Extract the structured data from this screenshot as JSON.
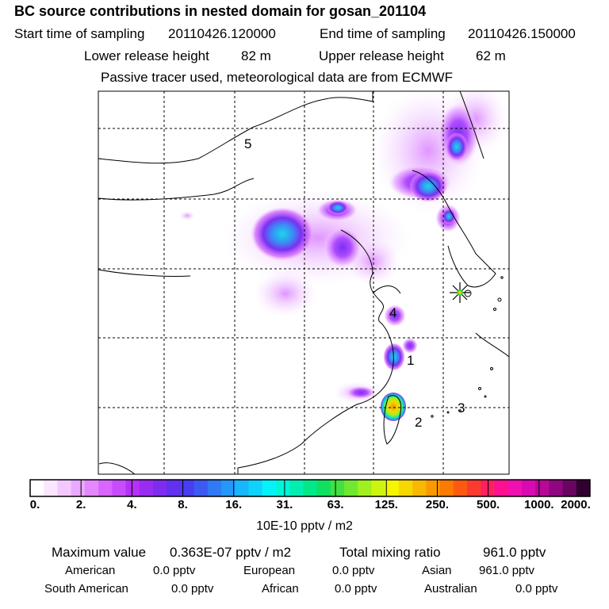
{
  "title": "BC  source contributions in nested domain for gosan_201104",
  "header": {
    "start_label": "Start time of sampling",
    "start_value": "20110426.120000",
    "end_label": "End time of sampling",
    "end_value": "20110426.150000",
    "lower_label": "Lower release height",
    "lower_value": "82 m",
    "upper_label": "Upper release height",
    "upper_value": "62 m",
    "note": "Passive tracer used, meteorological data are from ECMWF"
  },
  "map": {
    "region_labels": [
      "1",
      "2",
      "3",
      "4",
      "5"
    ],
    "receptor": "gosan-receptor-star"
  },
  "chart_data": {
    "type": "heatmap",
    "title": "BC  source contributions in nested domain for gosan_201104",
    "colorbar": {
      "ticks": [
        "0.",
        "2.",
        "4.",
        "8.",
        "16.",
        "31.",
        "63.",
        "125.",
        "250.",
        "500.",
        "1000.",
        "2000."
      ],
      "unit": "10E-10 pptv / m2",
      "colors": [
        "#ffffff",
        "#fbe6ff",
        "#f3c8ff",
        "#eaa8ff",
        "#e388ff",
        "#d866ff",
        "#c84cff",
        "#b431f5",
        "#9a2cf2",
        "#7d2cf0",
        "#6230ee",
        "#4a3cf0",
        "#3c5af2",
        "#2f7af5",
        "#2497f8",
        "#18b6fb",
        "#0fd2fd",
        "#05f2fa",
        "#00f5d8",
        "#00eeb0",
        "#00e888",
        "#10e060",
        "#40e040",
        "#70e830",
        "#a0f020",
        "#cdf510",
        "#f5f500",
        "#f5d800",
        "#f8b800",
        "#fa9800",
        "#fb7a00",
        "#fc5a10",
        "#fd3a30",
        "#ff2060",
        "#ff1090",
        "#f010b0",
        "#d80ab0",
        "#b80898",
        "#900680",
        "#680560",
        "#300030"
      ]
    },
    "stats": {
      "max_label": "Maximum value",
      "max_value": "0.363E-07 pptv / m2",
      "total_label": "Total mixing ratio",
      "total_value": "961.0 pptv"
    },
    "regions": [
      {
        "name": "American",
        "value": "0.0 pptv"
      },
      {
        "name": "European",
        "value": "0.0 pptv"
      },
      {
        "name": "Asian",
        "value": "961.0 pptv"
      },
      {
        "name": "South American",
        "value": "0.0 pptv"
      },
      {
        "name": "African",
        "value": "0.0 pptv"
      },
      {
        "name": "Australian",
        "value": "0.0 pptv"
      }
    ]
  }
}
